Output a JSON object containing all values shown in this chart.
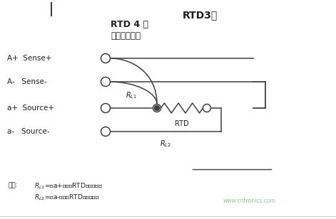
{
  "title_top": "RTD3线",
  "title_main": "RTD 4 线",
  "subtitle": "（精度最高）",
  "label_Ap": "A+  Sense+",
  "label_Am": "A-   Sense-",
  "label_ap": "a+  Source+",
  "label_am": "a-   Source-",
  "note_prefix": "注意：",
  "note_line1": "Rₗ₁=今中a+端子到RTD的导线电阴",
  "note_line2": "Rₗ₂=今中a-端子到RTD的导线电阴",
  "watermark": "www.cntronics.com",
  "bg_color": "#ffffff",
  "line_color": "#404040",
  "text_color": "#202020"
}
